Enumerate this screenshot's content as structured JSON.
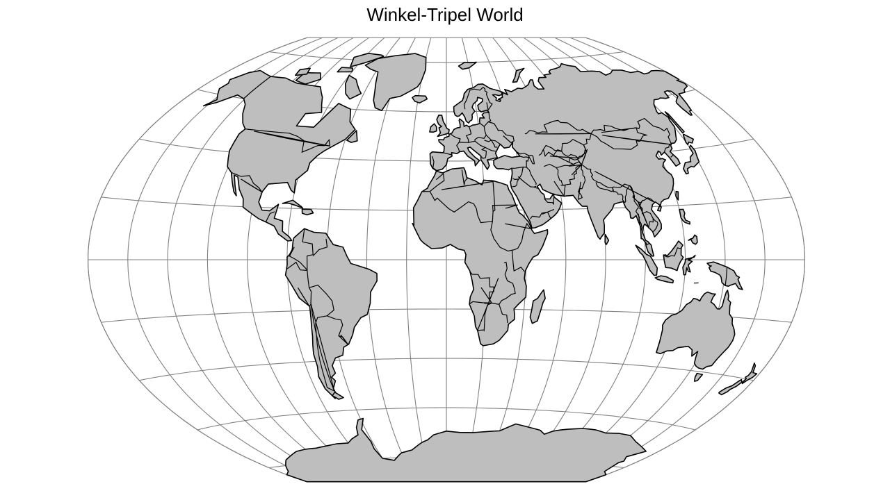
{
  "title": "Winkel-Tripel World",
  "map": {
    "projection": "Winkel tripel",
    "graticule_step_deg": 20,
    "land_fill": "#bebebe",
    "outline_color": "#000000",
    "graticule_color": "#808080",
    "background": "#ffffff"
  }
}
